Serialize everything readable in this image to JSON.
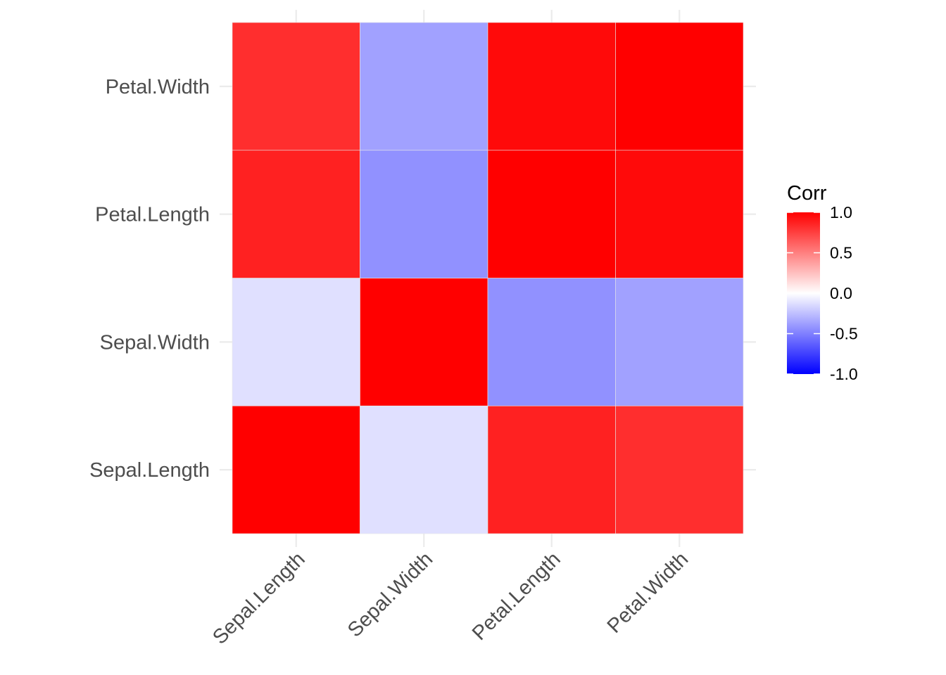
{
  "chart_data": {
    "type": "heatmap",
    "title": "",
    "xlabel": "",
    "ylabel": "",
    "x_categories": [
      "Sepal.Length",
      "Sepal.Width",
      "Petal.Length",
      "Petal.Width"
    ],
    "y_categories": [
      "Sepal.Length",
      "Sepal.Width",
      "Petal.Length",
      "Petal.Width"
    ],
    "matrix": [
      [
        1.0,
        -0.12,
        0.87,
        0.82
      ],
      [
        -0.12,
        1.0,
        -0.43,
        -0.37
      ],
      [
        0.87,
        -0.43,
        1.0,
        0.96
      ],
      [
        0.82,
        -0.37,
        0.96,
        1.0
      ]
    ],
    "grid": true,
    "legend": {
      "title": "Corr",
      "placement": "right",
      "ticks": [
        1.0,
        0.5,
        0.0,
        -0.5,
        -1.0
      ],
      "tick_labels": [
        "1.0",
        "0.5",
        "0.0",
        "-0.5",
        "-1.0"
      ],
      "limits": [
        -1,
        1
      ],
      "colors": {
        "low": "#0000FF",
        "mid": "#FFFFFF",
        "high": "#FF0000"
      }
    }
  }
}
